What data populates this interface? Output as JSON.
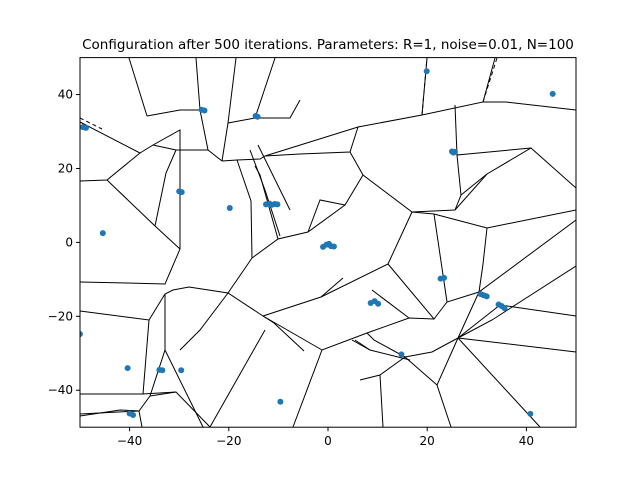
{
  "chart_data": {
    "type": "scatter",
    "title": "Configuration after 500 iterations. Parameters: R=1, noise=0.01, N=100",
    "xlabel": "",
    "ylabel": "",
    "xlim": [
      -50,
      50
    ],
    "ylim": [
      -50,
      50
    ],
    "xticks": [
      -40,
      -20,
      0,
      20,
      40
    ],
    "yticks": [
      -40,
      -20,
      0,
      20,
      40
    ],
    "xtick_labels": [
      "−40",
      "−20",
      "0",
      "20",
      "40"
    ],
    "ytick_labels": [
      "−40",
      "−20",
      "0",
      "20",
      "40"
    ],
    "grid": false,
    "overlay": "voronoi diagram of the points",
    "point_color": "#1f77b4",
    "edge_color": "#000000",
    "series": [
      {
        "points": [
          [
            -49.4,
            31.2
          ],
          [
            -48.8,
            31.0
          ],
          [
            -45.4,
            2.5
          ],
          [
            -50.0,
            -24.8
          ],
          [
            -25.5,
            35.9
          ],
          [
            -24.9,
            35.7
          ],
          [
            -14.6,
            34.2
          ],
          [
            -14.2,
            34.0
          ],
          [
            -30.0,
            13.8
          ],
          [
            -29.5,
            13.6
          ],
          [
            -19.8,
            9.3
          ],
          [
            -12.5,
            10.3
          ],
          [
            -11.8,
            10.5
          ],
          [
            -11.3,
            10.2
          ],
          [
            -10.7,
            10.4
          ],
          [
            -10.2,
            10.3
          ],
          [
            19.9,
            46.3
          ],
          [
            25.0,
            24.6
          ],
          [
            25.3,
            24.3
          ],
          [
            25.6,
            24.5
          ],
          [
            45.3,
            40.2
          ],
          [
            -1.0,
            -1.2
          ],
          [
            -0.3,
            -0.6
          ],
          [
            0.2,
            -0.4
          ],
          [
            0.6,
            -1.0
          ],
          [
            1.2,
            -1.1
          ],
          [
            22.7,
            -9.8
          ],
          [
            23.4,
            -9.6
          ],
          [
            30.8,
            -14.0
          ],
          [
            31.4,
            -14.3
          ],
          [
            32.0,
            -14.6
          ],
          [
            34.4,
            -16.8
          ],
          [
            35.0,
            -17.2
          ],
          [
            35.6,
            -17.8
          ],
          [
            8.6,
            -16.4
          ],
          [
            9.4,
            -15.9
          ],
          [
            10.1,
            -16.6
          ],
          [
            14.8,
            -30.3
          ],
          [
            -40.4,
            -34.0
          ],
          [
            -34.0,
            -34.5
          ],
          [
            -33.4,
            -34.6
          ],
          [
            -29.6,
            -34.6
          ],
          [
            -40.0,
            -46.3
          ],
          [
            -39.3,
            -46.7
          ],
          [
            -9.6,
            -43.1
          ],
          [
            40.8,
            -46.4
          ]
        ]
      }
    ]
  }
}
